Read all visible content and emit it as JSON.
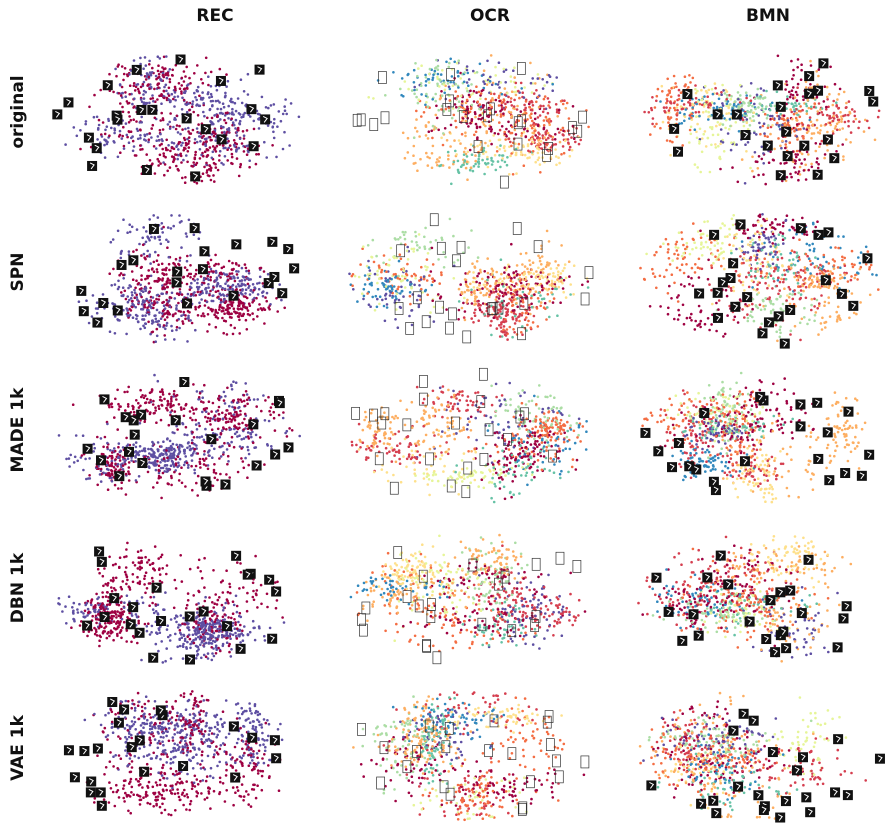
{
  "columns": [
    "REC",
    "OCR",
    "BMN"
  ],
  "rows": [
    "original",
    "SPN",
    "MADE 1k",
    "DBN 1k",
    "VAE 1k"
  ],
  "palettes": {
    "REC": [
      "#9e0142",
      "#5e4fa2"
    ],
    "OCR": [
      "#9e0142",
      "#d53e4f",
      "#f46d43",
      "#fdae61",
      "#fee08b",
      "#e6f598",
      "#abdda4",
      "#66c2a5",
      "#3288bd",
      "#5e4fa2"
    ],
    "BMN": [
      "#9e0142",
      "#d53e4f",
      "#f46d43",
      "#fdae61",
      "#fee08b",
      "#e6f598",
      "#abdda4",
      "#66c2a5",
      "#3288bd",
      "#5e4fa2"
    ]
  },
  "chart_data": {
    "type": "scatter",
    "description_type": "grid of 2D embedding scatter plots with thumbnail markers",
    "columns": [
      "REC",
      "OCR",
      "BMN"
    ],
    "rows": [
      "original",
      "SPN",
      "MADE 1k",
      "DBN 1k",
      "VAE 1k"
    ],
    "classes": {
      "REC": 2,
      "OCR": 10,
      "BMN": 10
    },
    "axes_visible": false
  }
}
